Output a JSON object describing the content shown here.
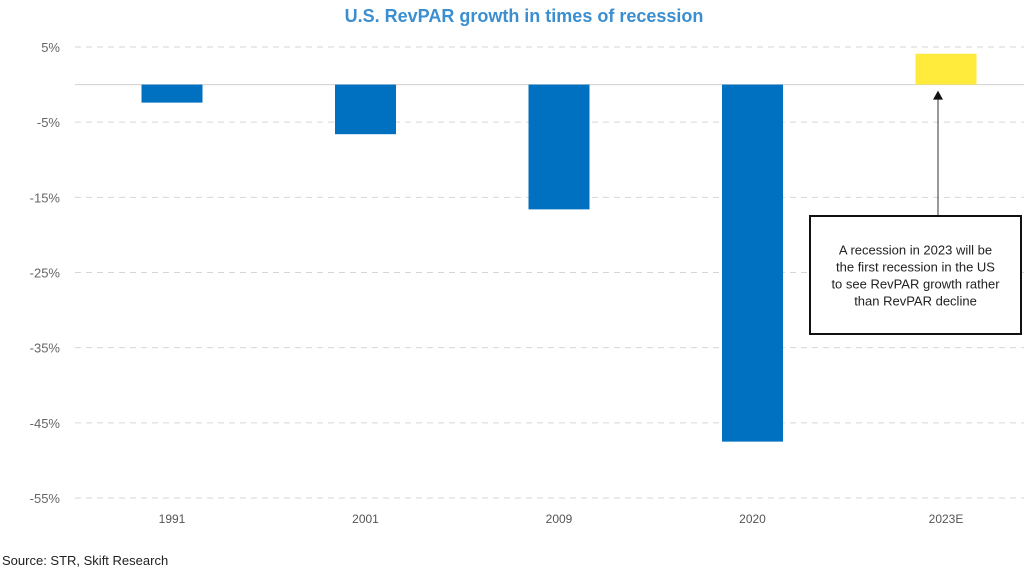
{
  "chart_data": {
    "type": "bar",
    "title": "U.S. RevPAR growth in times of recession",
    "xlabel": "",
    "ylabel": "",
    "categories": [
      "1991",
      "2001",
      "2009",
      "2020",
      "2023E"
    ],
    "values": [
      -2.4,
      -6.6,
      -16.6,
      -47.5,
      4.1
    ],
    "colors": [
      "#0070c0",
      "#0070c0",
      "#0070c0",
      "#0070c0",
      "#ffeb3b"
    ],
    "ylim": [
      -55,
      5
    ],
    "yticks": [
      5,
      -5,
      -15,
      -25,
      -35,
      -45,
      -55
    ],
    "ytick_labels": [
      "5%",
      "-5%",
      "-15%",
      "-25%",
      "-35%",
      "-45%",
      "-55%"
    ],
    "grid": true,
    "annotation": {
      "target_category": "2023E",
      "lines": [
        "A recession in 2023 will be",
        "the first recession in the US",
        "to see RevPAR growth rather",
        "than RevPAR decline"
      ]
    },
    "source": "Source: STR, Skift Research"
  }
}
